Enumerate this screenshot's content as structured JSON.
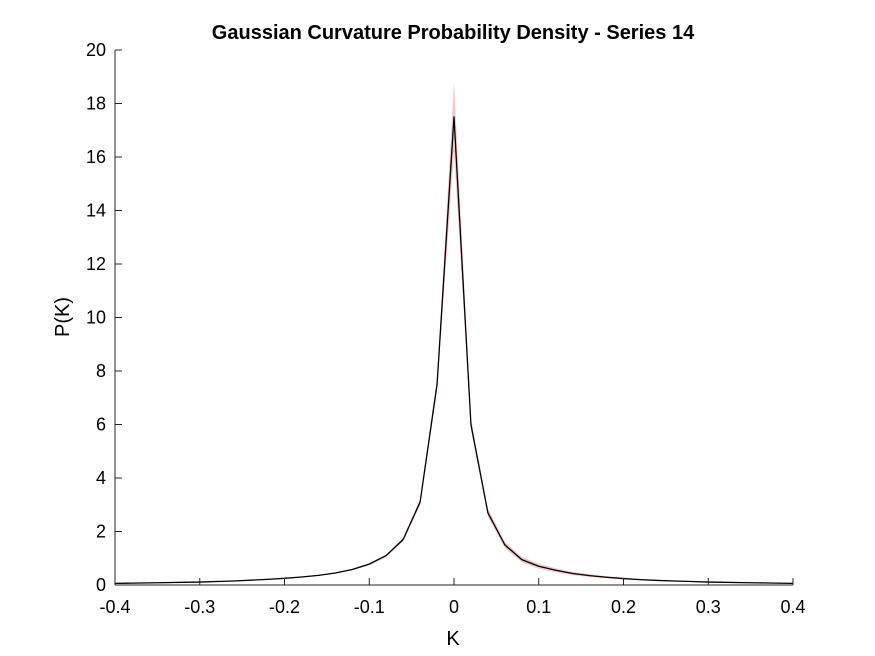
{
  "chart_data": {
    "type": "line",
    "title": "Gaussian Curvature Probability Density - Series 14",
    "xlabel": "K",
    "ylabel": "P(K)",
    "xlim": [
      -0.4,
      0.4
    ],
    "ylim": [
      0,
      20
    ],
    "xticks": [
      -0.4,
      -0.3,
      -0.2,
      -0.1,
      0,
      0.1,
      0.2,
      0.3,
      0.4
    ],
    "xtick_labels": [
      "-0.4",
      "-0.3",
      "-0.2",
      "-0.1",
      "0",
      "0.1",
      "0.2",
      "0.3",
      "0.4"
    ],
    "yticks": [
      0,
      2,
      4,
      6,
      8,
      10,
      12,
      14,
      16,
      18,
      20
    ],
    "ytick_labels": [
      "0",
      "2",
      "4",
      "6",
      "8",
      "10",
      "12",
      "14",
      "16",
      "18",
      "20"
    ],
    "grid": false,
    "series": [
      {
        "color": "#000000",
        "band_color": "#e8a0a0",
        "x": [
          -0.4,
          -0.38,
          -0.36,
          -0.34,
          -0.32,
          -0.3,
          -0.28,
          -0.26,
          -0.24,
          -0.22,
          -0.2,
          -0.18,
          -0.16,
          -0.14,
          -0.12,
          -0.1,
          -0.08,
          -0.06,
          -0.04,
          -0.02,
          0,
          0.02,
          0.04,
          0.06,
          0.08,
          0.1,
          0.12,
          0.14,
          0.16,
          0.18,
          0.2,
          0.22,
          0.24,
          0.26,
          0.28,
          0.3,
          0.32,
          0.34,
          0.36,
          0.38,
          0.4
        ],
        "y": [
          0.06,
          0.07,
          0.08,
          0.09,
          0.1,
          0.11,
          0.13,
          0.15,
          0.18,
          0.21,
          0.25,
          0.3,
          0.36,
          0.45,
          0.58,
          0.78,
          1.1,
          1.7,
          3.1,
          7.5,
          17.5,
          6.0,
          2.7,
          1.5,
          0.95,
          0.7,
          0.55,
          0.43,
          0.35,
          0.29,
          0.24,
          0.2,
          0.17,
          0.15,
          0.13,
          0.11,
          0.1,
          0.09,
          0.08,
          0.07,
          0.06
        ],
        "y_lower": [
          0.05,
          0.06,
          0.07,
          0.08,
          0.09,
          0.1,
          0.12,
          0.14,
          0.17,
          0.2,
          0.24,
          0.28,
          0.34,
          0.43,
          0.55,
          0.74,
          1.05,
          1.63,
          2.98,
          7.25,
          16.2,
          5.8,
          2.55,
          1.38,
          0.85,
          0.61,
          0.47,
          0.37,
          0.3,
          0.25,
          0.21,
          0.18,
          0.15,
          0.13,
          0.12,
          0.1,
          0.09,
          0.08,
          0.07,
          0.06,
          0.05
        ],
        "y_upper": [
          0.07,
          0.08,
          0.09,
          0.1,
          0.11,
          0.12,
          0.14,
          0.16,
          0.19,
          0.22,
          0.26,
          0.32,
          0.38,
          0.47,
          0.61,
          0.82,
          1.15,
          1.77,
          3.22,
          7.75,
          18.8,
          6.2,
          2.85,
          1.62,
          1.05,
          0.79,
          0.63,
          0.49,
          0.4,
          0.33,
          0.27,
          0.22,
          0.19,
          0.17,
          0.14,
          0.12,
          0.11,
          0.1,
          0.09,
          0.08,
          0.07
        ]
      }
    ]
  }
}
